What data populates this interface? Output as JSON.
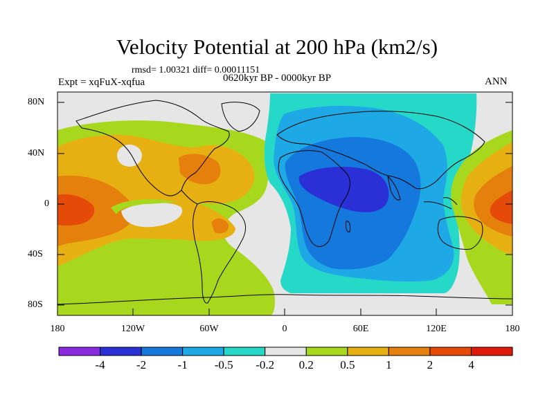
{
  "title": "Velocity Potential at 200 hPa (km2/s)",
  "stats_line": "rmsd= 1.00321 diff= 0.00011151",
  "experiment_label": "Expt = xqFuX-xqfua",
  "period_label": "0620kyr BP - 0000kyr BP",
  "season_label": "ANN",
  "y_axis": {
    "ticks": [
      "80N",
      "40N",
      "0",
      "40S",
      "80S"
    ]
  },
  "x_axis": {
    "ticks": [
      "180",
      "120W",
      "60W",
      "0",
      "60E",
      "120E",
      "180"
    ]
  },
  "colorbar": {
    "labels": [
      "-4",
      "-2",
      "-1",
      "-0.5",
      "-0.2",
      "0.2",
      "0.5",
      "1",
      "2",
      "4"
    ],
    "colors": [
      "#8a2be2",
      "#2a2fd6",
      "#1578dc",
      "#1ea8e6",
      "#26d8c8",
      "#e6e6e6",
      "#a8d81e",
      "#e6b012",
      "#e6800c",
      "#e64a08",
      "#e01a0a"
    ]
  },
  "colors": {
    "land": "#e6e6e6",
    "coast": "#000000"
  }
}
